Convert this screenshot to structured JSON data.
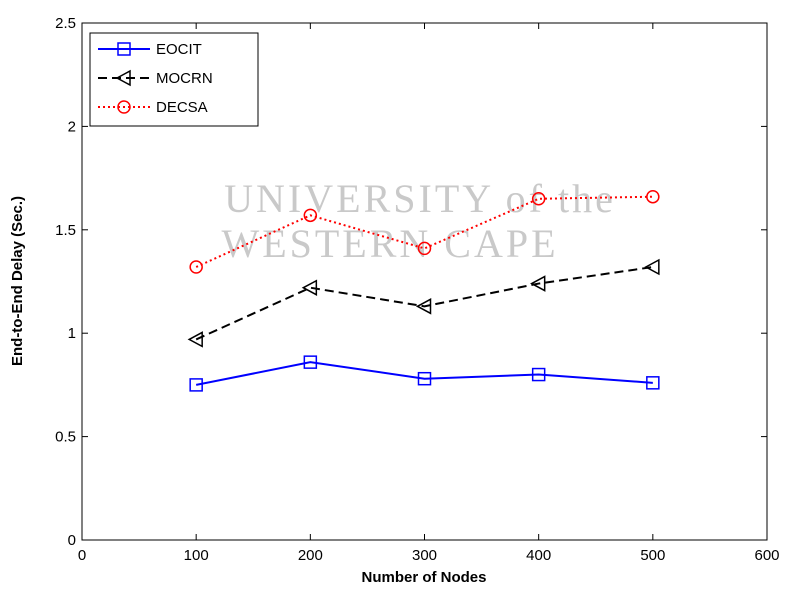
{
  "chart_data": {
    "type": "line",
    "watermark": [
      "UNIVERSITY of the",
      "WESTERN CAPE"
    ],
    "xlabel": "Number of Nodes",
    "ylabel": "End-to-End Delay (Sec.)",
    "x": [
      100,
      200,
      300,
      400,
      500
    ],
    "series": [
      {
        "name": "EOCIT",
        "color": "#0000ff",
        "marker": "square",
        "linestyle": "solid",
        "values": [
          0.75,
          0.86,
          0.78,
          0.8,
          0.76
        ]
      },
      {
        "name": "MOCRN",
        "color": "#000000",
        "marker": "triangle-left",
        "linestyle": "dashed",
        "values": [
          0.97,
          1.22,
          1.13,
          1.24,
          1.32
        ]
      },
      {
        "name": "DECSA",
        "color": "#ff0000",
        "marker": "circle",
        "linestyle": "dotted",
        "values": [
          1.32,
          1.57,
          1.41,
          1.65,
          1.66
        ]
      }
    ],
    "xlim": [
      0,
      600
    ],
    "xticks": [
      0,
      100,
      200,
      300,
      400,
      500,
      600
    ],
    "ylim": [
      0,
      2.5
    ],
    "yticks": [
      0,
      0.5,
      1,
      1.5,
      2,
      2.5
    ],
    "grid": false,
    "legend": "upper-left"
  }
}
